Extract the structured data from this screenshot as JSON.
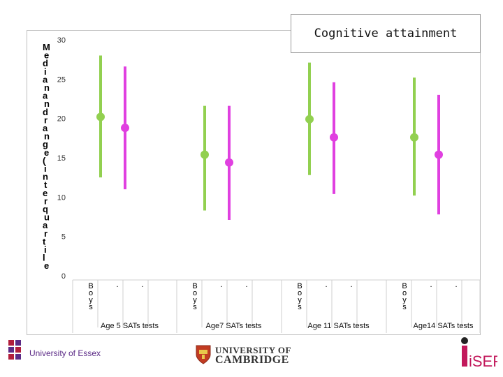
{
  "legend": {
    "title": "Cognitive attainment"
  },
  "chart_data": {
    "type": "error-bar",
    "title": "",
    "ylabel": "Median and range (interquartile) of scores",
    "ylim": [
      0,
      30
    ],
    "yticks": [
      "0",
      "5",
      "10",
      "15",
      "20",
      "25",
      "30"
    ],
    "groups": [
      {
        "label": "Age 5 SATs tests",
        "sublabels": [
          "Boys",
          ".",
          "."
        ]
      },
      {
        "label": "Age7 SATs tests",
        "sublabels": [
          "Boys",
          ".",
          "."
        ]
      },
      {
        "label": "Age 11 SATs tests",
        "sublabels": [
          "Boys",
          ".",
          "."
        ]
      },
      {
        "label": "Age14 SATs tests",
        "sublabels": [
          "Boys",
          ".",
          "."
        ]
      }
    ],
    "series": [
      {
        "color": "#92d050",
        "median": [
          20.2,
          15.4,
          19.9,
          17.6
        ],
        "low": [
          12.5,
          8.3,
          12.8,
          10.2
        ],
        "high": [
          28.0,
          21.6,
          27.1,
          25.2
        ]
      },
      {
        "color": "#e040e0",
        "median": [
          18.8,
          14.4,
          17.6,
          15.4
        ],
        "low": [
          11.0,
          7.1,
          10.4,
          7.8
        ],
        "high": [
          26.6,
          21.6,
          24.6,
          23.0
        ]
      }
    ]
  },
  "logos": {
    "essex": "University of Essex",
    "cambridge_line1": "UNIVERSITY OF",
    "cambridge_line2": "CAMBRIDGE",
    "iser": "iSER"
  }
}
